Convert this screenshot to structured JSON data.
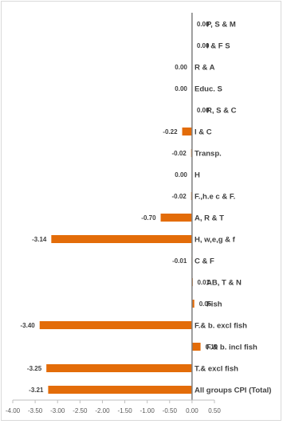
{
  "chart_data": {
    "type": "bar",
    "orientation": "horizontal",
    "bar_color": "#e36c09",
    "axis_color": "#7f7f7f",
    "xlim": [
      -4.0,
      0.5
    ],
    "xticks": [
      "-4.00",
      "-3.50",
      "-3.00",
      "-2.50",
      "-2.00",
      "-1.50",
      "-1.00",
      "-0.50",
      "0.00",
      "0.50"
    ],
    "grid": false,
    "legend": "none",
    "categories": [
      "P, S & M",
      "I & F S",
      "R & A",
      "Educ. S",
      "R, S & C",
      "I & C",
      "Transp.",
      "H",
      "F.,h.e c & F.",
      "A, R & T",
      "H, w,e,g & f",
      "C & F",
      "AB, T & N",
      "Fish",
      "F.& b. excl fish",
      "F.& b. incl fish",
      "T.& excl fish",
      "All groups CPI (Total)"
    ],
    "values": [
      0.0,
      0.0,
      0.0,
      0.0,
      0.0,
      -0.22,
      -0.02,
      0.0,
      -0.02,
      -0.7,
      -3.14,
      -0.01,
      0.01,
      0.05,
      -3.4,
      0.19,
      -3.25,
      -3.21
    ],
    "value_labels": [
      "0.00",
      "0.00",
      "0.00",
      "0.00",
      "0.00",
      "-0.22",
      "-0.02",
      "0.00",
      "-0.02",
      "-0.70",
      "-3.14",
      "-0.01",
      "0.01",
      "0.05",
      "-3.40",
      "0.19",
      "-3.25",
      "-3.21"
    ],
    "label_side": [
      "right",
      "right",
      "left",
      "left",
      "right",
      "left",
      "left",
      "left",
      "left",
      "left",
      "left",
      "left",
      "right",
      "right",
      "left",
      "right",
      "left",
      "left"
    ]
  }
}
